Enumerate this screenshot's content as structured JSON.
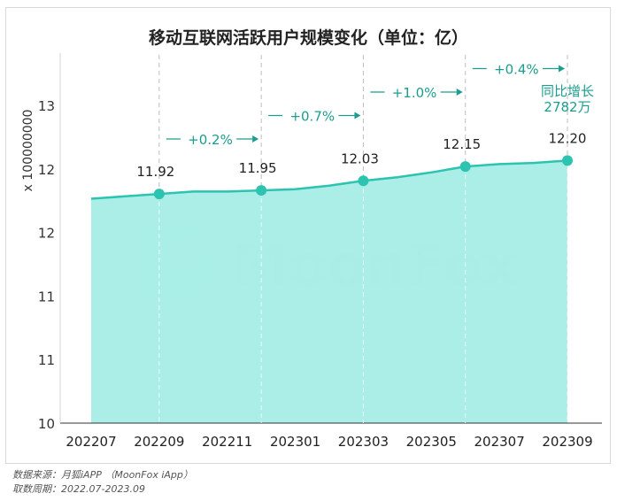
{
  "title": "移动互联网活跃用户规模变化（单位：亿）",
  "watermark": "MoonFox",
  "footer": {
    "source": "数据来源：月狐iAPP （MoonFox iApp）",
    "period": "取数周期：2022.07-2023.09"
  },
  "colors": {
    "area_fill": "#a3ede5",
    "line": "#2cc4b1",
    "marker": "#2cc4b1",
    "annotation": "#1a9e8f",
    "axis": "#333333"
  },
  "chart_data": {
    "type": "area",
    "title": "移动互联网活跃用户规模变化（单位：亿）",
    "ylabel": "x 100000000",
    "y_tick_labels": [
      "10",
      "11",
      "11",
      "12",
      "12",
      "13"
    ],
    "ylim": [
      10,
      13.1
    ],
    "x_tick_labels": [
      "202207",
      "202209",
      "202211",
      "202301",
      "202303",
      "202305",
      "202307",
      "202309"
    ],
    "x": [
      "202207",
      "202208",
      "202209",
      "202210",
      "202211",
      "202212",
      "202301",
      "202302",
      "202303",
      "202304",
      "202305",
      "202306",
      "202307",
      "202308",
      "202309"
    ],
    "values": [
      11.88,
      11.9,
      11.92,
      11.94,
      11.94,
      11.95,
      11.96,
      11.99,
      12.03,
      12.06,
      12.1,
      12.15,
      12.17,
      12.18,
      12.2
    ],
    "highlighted_points": [
      {
        "x": "202209",
        "value": 11.92,
        "label": "11.92"
      },
      {
        "x": "202212",
        "value": 11.95,
        "label": "11.95"
      },
      {
        "x": "202303",
        "value": 12.03,
        "label": "12.03"
      },
      {
        "x": "202306",
        "value": 12.15,
        "label": "12.15"
      },
      {
        "x": "202309",
        "value": 12.2,
        "label": "12.20"
      }
    ],
    "growth_annotations": [
      {
        "from": "202209",
        "to": "202212",
        "label": "+0.2%"
      },
      {
        "from": "202212",
        "to": "202303",
        "label": "+0.7%"
      },
      {
        "from": "202303",
        "to": "202306",
        "label": "+1.0%"
      },
      {
        "from": "202306",
        "to": "202309",
        "label": "+0.4%"
      }
    ],
    "final_note": [
      "同比增长",
      "2782万"
    ],
    "grid": false,
    "legend": "none"
  }
}
